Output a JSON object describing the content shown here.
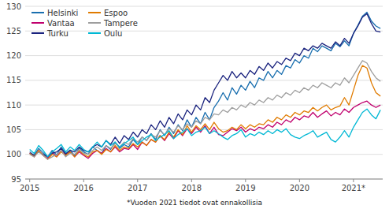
{
  "chart_data": {
    "type": "line",
    "footnote": "*Vuoden 2021 tiedot ovat ennakollisia",
    "categories": [
      "2015",
      null,
      null,
      null,
      null,
      null,
      null,
      null,
      null,
      null,
      null,
      null,
      "2016",
      null,
      null,
      null,
      null,
      null,
      null,
      null,
      null,
      null,
      null,
      null,
      "2017",
      null,
      null,
      null,
      null,
      null,
      null,
      null,
      null,
      null,
      null,
      null,
      "2018",
      null,
      null,
      null,
      null,
      null,
      null,
      null,
      null,
      null,
      null,
      null,
      "2019",
      null,
      null,
      null,
      null,
      null,
      null,
      null,
      null,
      null,
      null,
      null,
      "2020",
      null,
      null,
      null,
      null,
      null,
      null,
      null,
      null,
      null,
      null,
      null,
      "2021*",
      null,
      null,
      null,
      null,
      null,
      null
    ],
    "ylim": [
      95,
      130
    ],
    "yticks": [
      95,
      100,
      105,
      110,
      115,
      120,
      125,
      130
    ],
    "grid": true,
    "legend": "upper left",
    "series": [
      {
        "name": "Helsinki",
        "color": "#1a6faf",
        "values": [
          100.5,
          99.8,
          101.2,
          100.3,
          99.5,
          100.8,
          99.9,
          101.5,
          100.2,
          100.9,
          99.7,
          101.3,
          100.5,
          100.0,
          101.5,
          100.8,
          100.2,
          101.8,
          101.0,
          102.5,
          101.2,
          102.0,
          101.5,
          103.0,
          102.0,
          103.5,
          102.8,
          104.2,
          103.0,
          105.0,
          103.8,
          105.5,
          104.2,
          106.0,
          104.8,
          107.0,
          105.5,
          107.5,
          106.2,
          108.5,
          107.0,
          109.5,
          110.8,
          112.5,
          111.0,
          113.5,
          112.2,
          114.0,
          113.0,
          114.8,
          113.5,
          115.5,
          115.0,
          116.8,
          115.5,
          117.0,
          116.2,
          118.0,
          117.5,
          119.2,
          118.5,
          120.0,
          119.5,
          121.5,
          120.8,
          122.0,
          121.5,
          121.0,
          122.5,
          121.8,
          123.0,
          122.0,
          124.5,
          126.2,
          128.0,
          128.8,
          127.0,
          126.0,
          125.5
        ]
      },
      {
        "name": "Vantaa",
        "color": "#c0006e",
        "values": [
          100.3,
          99.5,
          100.8,
          99.8,
          99.2,
          100.5,
          99.5,
          100.8,
          99.8,
          100.5,
          99.5,
          100.5,
          99.8,
          99.2,
          100.2,
          100.8,
          100.2,
          101.2,
          100.5,
          101.5,
          100.5,
          101.2,
          101.0,
          102.0,
          101.0,
          102.5,
          101.8,
          103.0,
          102.5,
          103.8,
          102.8,
          104.2,
          103.2,
          104.8,
          103.8,
          105.2,
          104.2,
          105.5,
          104.5,
          105.8,
          104.2,
          105.5,
          104.0,
          103.8,
          104.5,
          105.2,
          104.8,
          105.5,
          104.5,
          105.2,
          104.8,
          105.5,
          105.2,
          106.0,
          105.5,
          106.5,
          106.0,
          107.0,
          106.5,
          107.5,
          107.0,
          107.8,
          107.5,
          108.5,
          107.5,
          108.2,
          108.8,
          107.8,
          108.5,
          108.0,
          109.2,
          108.5,
          109.5,
          110.0,
          110.5,
          110.8,
          110.0,
          109.5,
          110.0
        ]
      },
      {
        "name": "Turku",
        "color": "#1a237e",
        "values": [
          100.2,
          99.8,
          100.5,
          100.0,
          99.5,
          100.2,
          100.5,
          101.2,
          100.0,
          100.8,
          100.5,
          101.5,
          100.8,
          100.5,
          101.5,
          102.0,
          101.5,
          102.8,
          102.0,
          103.5,
          102.2,
          103.8,
          103.0,
          104.5,
          103.5,
          105.0,
          104.2,
          106.0,
          105.0,
          106.8,
          105.5,
          107.5,
          106.2,
          108.2,
          107.0,
          109.0,
          108.0,
          110.0,
          109.0,
          111.5,
          110.5,
          113.0,
          114.5,
          116.0,
          115.0,
          116.8,
          115.5,
          116.5,
          115.5,
          117.0,
          116.2,
          117.8,
          117.0,
          118.5,
          117.5,
          118.8,
          118.2,
          119.5,
          119.0,
          120.5,
          120.0,
          121.5,
          121.0,
          122.0,
          121.5,
          122.5,
          122.0,
          121.5,
          122.8,
          122.0,
          123.5,
          122.5,
          124.5,
          126.0,
          127.8,
          128.5,
          126.5,
          125.0,
          124.8
        ]
      },
      {
        "name": "Espoo",
        "color": "#e07b00",
        "values": [
          100.2,
          99.5,
          100.8,
          99.8,
          99.0,
          100.0,
          99.5,
          100.5,
          99.8,
          100.5,
          99.5,
          100.8,
          100.0,
          99.5,
          100.5,
          100.8,
          100.0,
          101.0,
          100.5,
          101.8,
          100.8,
          101.5,
          101.2,
          102.2,
          101.5,
          102.5,
          101.8,
          103.0,
          102.5,
          103.8,
          103.0,
          104.5,
          103.5,
          105.0,
          104.0,
          105.8,
          104.5,
          105.8,
          105.0,
          106.2,
          105.0,
          106.5,
          105.2,
          104.5,
          104.8,
          105.5,
          105.0,
          106.0,
          105.2,
          106.0,
          105.5,
          106.2,
          106.0,
          107.0,
          106.5,
          107.5,
          107.0,
          108.0,
          107.5,
          108.5,
          108.0,
          108.8,
          108.5,
          109.5,
          108.8,
          109.5,
          110.0,
          109.0,
          109.5,
          109.8,
          111.5,
          110.0,
          113.0,
          116.0,
          118.0,
          117.5,
          114.5,
          112.5,
          111.8
        ]
      },
      {
        "name": "Tampere",
        "color": "#9e9e9e",
        "values": [
          100.0,
          99.5,
          100.5,
          99.8,
          99.0,
          99.5,
          100.0,
          100.8,
          99.5,
          100.2,
          100.0,
          101.0,
          100.2,
          100.0,
          100.8,
          101.5,
          100.8,
          101.8,
          101.2,
          102.2,
          101.5,
          102.5,
          102.0,
          103.2,
          102.5,
          103.5,
          102.8,
          104.0,
          103.5,
          104.8,
          104.0,
          105.2,
          104.5,
          105.8,
          105.0,
          106.2,
          105.5,
          106.8,
          106.2,
          107.5,
          107.0,
          108.2,
          108.0,
          109.0,
          108.5,
          109.5,
          109.0,
          110.0,
          109.5,
          110.5,
          110.0,
          111.0,
          110.5,
          111.5,
          111.0,
          112.0,
          111.5,
          112.5,
          112.0,
          113.0,
          112.5,
          113.5,
          113.0,
          114.0,
          113.5,
          114.5,
          114.0,
          113.5,
          114.5,
          114.0,
          115.5,
          114.5,
          116.0,
          117.5,
          119.0,
          118.5,
          116.8,
          115.5,
          114.8
        ]
      },
      {
        "name": "Oulu",
        "color": "#00b8d4",
        "values": [
          101.0,
          100.2,
          101.8,
          100.8,
          99.5,
          100.5,
          101.2,
          102.0,
          100.5,
          101.5,
          100.8,
          102.0,
          101.0,
          100.5,
          101.5,
          102.5,
          101.5,
          102.8,
          101.8,
          102.5,
          101.5,
          102.2,
          102.8,
          103.5,
          102.0,
          102.8,
          103.5,
          104.0,
          102.8,
          103.5,
          104.0,
          104.8,
          103.2,
          104.0,
          104.5,
          105.2,
          103.8,
          104.5,
          104.8,
          105.5,
          104.2,
          104.8,
          104.2,
          103.5,
          103.0,
          103.8,
          104.2,
          105.0,
          103.5,
          104.2,
          103.8,
          104.5,
          104.0,
          104.8,
          104.2,
          105.0,
          104.5,
          105.2,
          104.0,
          103.5,
          103.2,
          103.8,
          104.2,
          104.8,
          103.5,
          104.0,
          104.5,
          103.0,
          102.5,
          103.5,
          104.8,
          103.5,
          105.5,
          107.0,
          108.5,
          109.2,
          108.0,
          107.2,
          109.0
        ]
      }
    ]
  }
}
